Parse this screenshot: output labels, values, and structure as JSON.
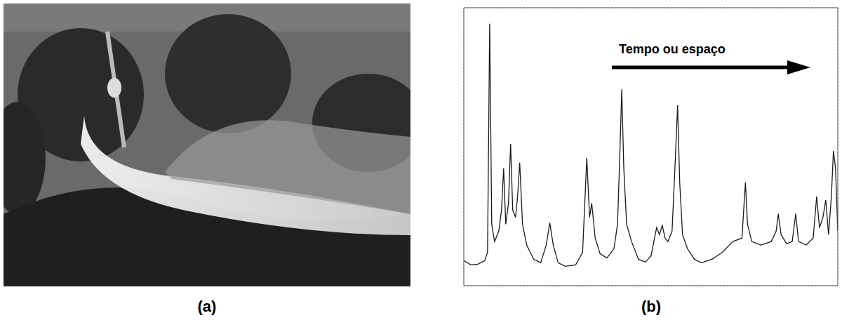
{
  "image_panel": {
    "label": "(a)"
  },
  "chart_data": {
    "type": "line",
    "label": "(b)",
    "annotation": "Tempo ou espaço",
    "x": [
      0,
      0.112,
      0.224,
      0.336,
      0.381,
      0.415,
      0.448,
      0.493,
      0.561,
      0.605,
      0.639,
      0.673,
      0.717,
      0.751,
      0.785,
      0.83,
      0.863,
      0.897,
      0.942,
      1.009,
      1.121,
      1.233,
      1.323,
      1.379,
      1.435,
      1.513,
      1.626,
      1.794,
      1.906,
      1.973,
      2.018,
      2.052,
      2.108,
      2.186,
      2.298,
      2.41,
      2.466,
      2.5,
      2.534,
      2.567,
      2.612,
      2.691,
      2.803,
      2.915,
      3.004,
      3.06,
      3.094,
      3.139,
      3.184,
      3.229,
      3.274,
      3.341,
      3.397,
      3.43,
      3.464,
      3.509,
      3.587,
      3.7,
      3.812,
      3.98,
      4.148,
      4.316,
      4.462,
      4.518,
      4.552,
      4.619,
      4.765,
      4.933,
      5.011,
      5.045,
      5.09,
      5.179,
      5.269,
      5.325,
      5.37,
      5.493,
      5.605,
      5.661,
      5.706,
      5.762,
      5.807,
      5.852,
      5.897,
      5.93,
      5.964,
      6
    ],
    "values": [
      0.72,
      0.6,
      0.62,
      0.72,
      0.96,
      7.54,
      1.77,
      1.27,
      1.57,
      2.17,
      3.38,
      1.77,
      2.37,
      4.08,
      2.17,
      1.97,
      2.57,
      3.54,
      1.77,
      1.17,
      0.76,
      0.66,
      1.17,
      1.81,
      1.17,
      0.66,
      0.56,
      0.6,
      0.96,
      3.68,
      1.97,
      2.37,
      1.37,
      0.92,
      0.8,
      1.07,
      1.77,
      3.58,
      5.65,
      3.38,
      1.77,
      1.27,
      0.76,
      0.68,
      0.86,
      1.37,
      1.67,
      1.47,
      1.73,
      1.37,
      1.27,
      1.57,
      3.78,
      5.19,
      2.97,
      1.47,
      1.07,
      0.76,
      0.66,
      0.76,
      0.96,
      1.27,
      1.37,
      2.97,
      1.77,
      1.27,
      1.17,
      1.27,
      1.57,
      2.07,
      1.47,
      1.21,
      1.27,
      2.07,
      1.27,
      1.17,
      1.37,
      2.57,
      1.67,
      1.97,
      2.47,
      1.47,
      2.57,
      3.88,
      3.38,
      1.57
    ],
    "color": "#1a1a1a",
    "xlim": [
      0,
      6
    ],
    "xticks": [
      0,
      1,
      2,
      3,
      4,
      5,
      6
    ],
    "ylim": [
      0,
      8
    ],
    "yticks": [
      0,
      1,
      2,
      3,
      4,
      5,
      6,
      7,
      8
    ],
    "grid": true,
    "tick_labels": false
  }
}
